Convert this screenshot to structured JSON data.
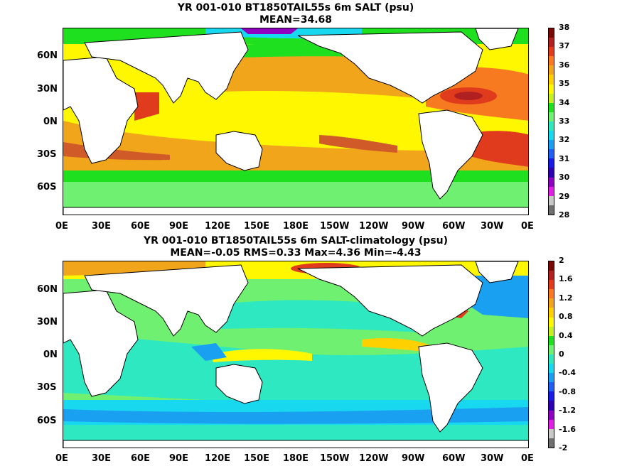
{
  "panels": [
    {
      "title_line1": "YR 001-010 BT1850TAIL55s 6m SALT (psu)",
      "title_line2": "MEAN=34.68",
      "lat_labels": [
        "60N",
        "30N",
        "0N",
        "30S",
        "60S"
      ],
      "lon_labels": [
        "0E",
        "30E",
        "60E",
        "90E",
        "120E",
        "150E",
        "180E",
        "150W",
        "120W",
        "90W",
        "60W",
        "30W",
        "0E"
      ],
      "colorbar": {
        "labels": [
          "38",
          "37",
          "36",
          "35",
          "34",
          "33",
          "32",
          "31",
          "30",
          "29",
          "28"
        ],
        "colors": [
          "#7a0a0a",
          "#b02020",
          "#e03b1c",
          "#f77a20",
          "#f0a51b",
          "#ffd000",
          "#fff700",
          "#c8f020",
          "#1fe01f",
          "#70f070",
          "#2de8c0",
          "#18d8f0",
          "#1aa0f0",
          "#2060f0",
          "#1a1ae0",
          "#3000b0",
          "#9000c0",
          "#e020e0",
          "#c8c8c8",
          "#707070"
        ]
      }
    },
    {
      "title_line1": "YR 001-010 BT1850TAIL55s 6m SALT-climatology (psu)",
      "title_line2": "MEAN=-0.05   RMS=0.33   Max=4.36   Min=-4.43",
      "lat_labels": [
        "60N",
        "30N",
        "0N",
        "30S",
        "60S"
      ],
      "lon_labels": [
        "0E",
        "30E",
        "60E",
        "90E",
        "120E",
        "150E",
        "180E",
        "150W",
        "120W",
        "90W",
        "60W",
        "30W",
        "0E"
      ],
      "colorbar": {
        "labels": [
          "2",
          "1.6",
          "1.2",
          "0.8",
          "0.4",
          "0",
          "-0.4",
          "-0.8",
          "-1.2",
          "-1.6",
          "-2"
        ],
        "colors": [
          "#7a0a0a",
          "#b02020",
          "#e03b1c",
          "#f77a20",
          "#f0a51b",
          "#ffd000",
          "#fff700",
          "#c8f020",
          "#1fe01f",
          "#70f070",
          "#2de8c0",
          "#18d8f0",
          "#1aa0f0",
          "#2060f0",
          "#1a1ae0",
          "#3000b0",
          "#9000c0",
          "#e020e0",
          "#c8c8c8",
          "#707070"
        ]
      }
    }
  ]
}
